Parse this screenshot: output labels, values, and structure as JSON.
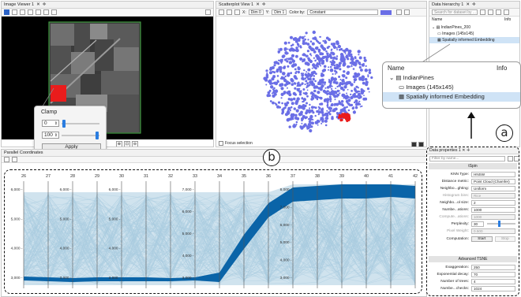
{
  "image_viewer": {
    "tab_title": "Image Viewer 1",
    "zoom_buttons": [
      "⊕",
      "⊡",
      "⊖"
    ]
  },
  "clamp_popup": {
    "title": "Clamp",
    "min_value": "0",
    "max_value": "100",
    "apply_label": "Apply"
  },
  "scatterplot": {
    "tab_title": "Scatterplot View 1",
    "x_dim": "Dim 0",
    "y_dim": "Dim 1",
    "color_by_label": "Color by:",
    "color_by_value": "Constant",
    "focus_selection_label": "Focus selection",
    "point_color": "#6a6ee6",
    "selection_color": "#ea1c1c"
  },
  "data_hierarchy": {
    "tab_title": "Data hierarchy 1",
    "search_placeholder": "Search for dataset by ...",
    "col_name": "Name",
    "col_info": "Info",
    "items": [
      {
        "label": "IndianPines_200"
      },
      {
        "label": "Images (145x145)"
      },
      {
        "label": "Spatially informed Embedding"
      }
    ]
  },
  "zoom_callout": {
    "col_name": "Name",
    "col_info": "Info",
    "items": [
      {
        "label": "IndianPines"
      },
      {
        "label": "Images (145x145)"
      },
      {
        "label": "Spatially informed Embedding"
      }
    ]
  },
  "callouts": {
    "a": "a",
    "b": "b"
  },
  "data_properties": {
    "tab_title": "Data properties 1",
    "filter_placeholder": "Filter by name...",
    "section_tsne": "tSpin",
    "rows": [
      {
        "label": "KNN Type:",
        "value": "HNSW",
        "dim": false
      },
      {
        "label": "Distance metric:",
        "value": "Point Cloud (Chamfer)",
        "dim": false
      },
      {
        "label": "Neighbo...ghting:",
        "value": "Uniform",
        "dim": false
      },
      {
        "label": "Histogram bins:",
        "value": "Rice",
        "dim": true
      },
      {
        "label": "Neighbo...ol size:",
        "value": "2",
        "dim": false
      },
      {
        "label": "Numbe...ations:",
        "value": "1000",
        "dim": false
      },
      {
        "label": "Compute...ations:",
        "value": "1000",
        "dim": true
      },
      {
        "label": "Perplexity:",
        "value": "30",
        "dim": false
      },
      {
        "label": "Pixel Weight:",
        "value": "0.500",
        "dim": true
      }
    ],
    "computation_label": "Computation:",
    "start_label": "Start",
    "stop_label": "Stop",
    "section_advanced": "Advanced TSNE",
    "advanced_rows": [
      {
        "label": "Exaggeration:",
        "value": "250"
      },
      {
        "label": "Exponential decay:",
        "value": "70"
      },
      {
        "label": "Number of trees:",
        "value": "4"
      },
      {
        "label": "Numbe...checks:",
        "value": "1024"
      }
    ]
  },
  "parallel_coords": {
    "tab_title": "Parallel Coordinates",
    "axes": [
      "26",
      "27",
      "28",
      "29",
      "30",
      "31",
      "32",
      "33",
      "34",
      "35",
      "36",
      "37",
      "38",
      "39",
      "40",
      "41",
      "42"
    ],
    "context_color": "#a9cce0",
    "selection_color": "#0a64a8",
    "tick_text": {
      "a26": [
        "6,000 -",
        "5,000 -",
        "4,000 -",
        "3,000 -"
      ],
      "a28": [
        "6,000 -",
        "5,000 -",
        "4,000 -",
        "3,000 -"
      ],
      "a30": [
        "6,000 -",
        "5,000 -",
        "4,000 -",
        "3,000 -"
      ],
      "a33": [
        "7,000 -",
        "6,000 -",
        "5,000 -",
        "4,000 -",
        "3,000 -"
      ],
      "a37": [
        "8,000 -",
        "7,000 -",
        "6,000 -",
        "5,000 -",
        "4,000 -",
        "3,000 -"
      ]
    }
  }
}
